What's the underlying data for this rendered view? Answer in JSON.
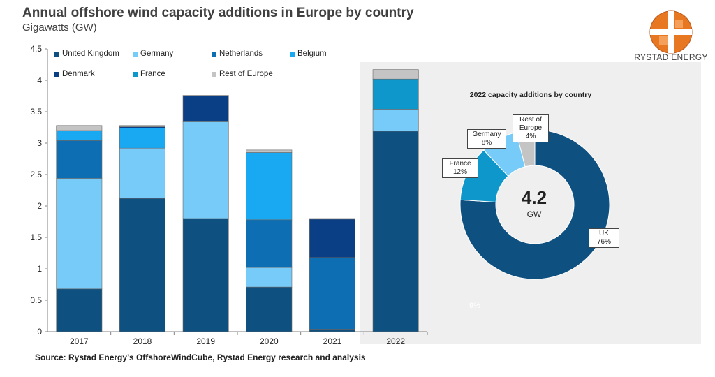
{
  "title": "Annual offshore wind capacity additions in Europe by country",
  "subtitle": "Gigawatts (GW)",
  "logo_text": "RYSTAD ENERGY",
  "source": "Source: Rystad Energy’s OffshoreWindCube, Rystad Energy research and analysis",
  "colors": {
    "United Kingdom": "#0e5080",
    "Germany": "#77cbf9",
    "Netherlands": "#0e6eb3",
    "Belgium": "#18a9f2",
    "Denmark": "#0a3f85",
    "France": "#0d97ca",
    "Rest of Europe": "#c4c4c4"
  },
  "chart_data": [
    {
      "type": "bar",
      "stacked": true,
      "categories": [
        "2017",
        "2018",
        "2019",
        "2020",
        "2021",
        "2022"
      ],
      "series": [
        {
          "name": "United Kingdom",
          "values": [
            0.68,
            2.12,
            1.8,
            0.71,
            0.04,
            3.19
          ]
        },
        {
          "name": "Germany",
          "values": [
            1.76,
            0.8,
            1.54,
            0.31,
            0.0,
            0.35
          ]
        },
        {
          "name": "Netherlands",
          "values": [
            0.6,
            0.0,
            0.0,
            0.76,
            1.14,
            0.0
          ]
        },
        {
          "name": "Belgium",
          "values": [
            0.16,
            0.32,
            0.0,
            1.07,
            0.0,
            0.0
          ]
        },
        {
          "name": "Denmark",
          "values": [
            0.0,
            0.02,
            0.41,
            0.0,
            0.61,
            0.0
          ]
        },
        {
          "name": "France",
          "values": [
            0.0,
            0.0,
            0.0,
            0.0,
            0.0,
            0.48
          ]
        },
        {
          "name": "Rest of Europe",
          "values": [
            0.08,
            0.02,
            0.01,
            0.04,
            0.01,
            0.15
          ]
        }
      ],
      "ylim": [
        0,
        4.5
      ],
      "yticks": [
        "0",
        "0.5",
        "1",
        "1.5",
        "2",
        "2.5",
        "3",
        "3.5",
        "4",
        "4.5"
      ],
      "legend": [
        "United Kingdom",
        "Germany",
        "Netherlands",
        "Belgium",
        "Denmark",
        "France",
        "Rest of Europe"
      ],
      "grid": false,
      "legend_position": "top-left"
    },
    {
      "type": "pie",
      "donut": true,
      "title": "2022 capacity additions by country",
      "center_value": "4.2",
      "center_unit": "GW",
      "slices": [
        {
          "name": "UK",
          "label": "UK",
          "pct_text": "76%",
          "value": 76,
          "color_key": "United Kingdom"
        },
        {
          "name": "France",
          "label": "France",
          "pct_text": "12%",
          "value": 12,
          "color_key": "France"
        },
        {
          "name": "Germany",
          "label": "Germany",
          "pct_text": "8%",
          "value": 8,
          "color_key": "Germany"
        },
        {
          "name": "Rest of Europe",
          "label": "Rest of Europe",
          "pct_text": "4%",
          "value": 4,
          "color_key": "Rest of Europe"
        }
      ],
      "ghost_label": "9%"
    }
  ]
}
